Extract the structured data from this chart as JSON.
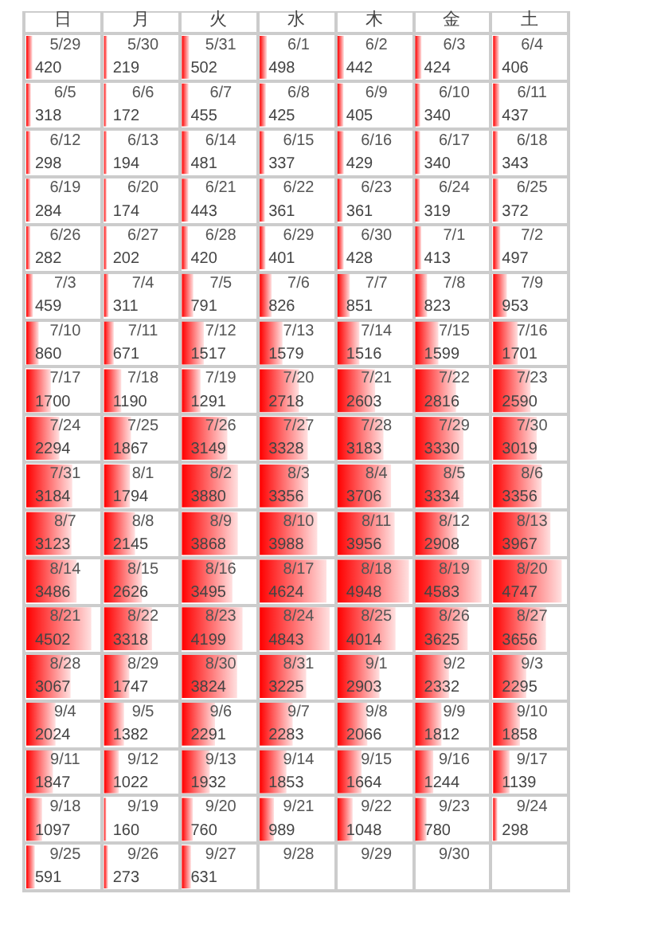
{
  "chart_data": {
    "type": "heatmap",
    "categories": [
      "日",
      "月",
      "火",
      "水",
      "木",
      "金",
      "土"
    ],
    "y_categories": [
      null,
      null,
      null,
      null,
      null,
      null,
      null,
      null,
      null,
      null,
      null,
      null,
      null,
      null,
      null,
      null,
      null,
      null
    ],
    "cells": [
      [
        420,
        219,
        502,
        498,
        442,
        424,
        406
      ],
      [
        318,
        172,
        455,
        425,
        405,
        340,
        437
      ],
      [
        298,
        194,
        481,
        337,
        429,
        340,
        343
      ],
      [
        284,
        174,
        443,
        361,
        361,
        319,
        372
      ],
      [
        282,
        202,
        420,
        401,
        428,
        413,
        497
      ],
      [
        459,
        311,
        791,
        826,
        851,
        823,
        953
      ],
      [
        860,
        671,
        1517,
        1579,
        1516,
        1599,
        1701
      ],
      [
        1700,
        1190,
        1291,
        2718,
        2603,
        2816,
        2590
      ],
      [
        2294,
        1867,
        3149,
        3328,
        3183,
        3330,
        3019
      ],
      [
        3184,
        1794,
        3880,
        3356,
        3706,
        3334,
        3356
      ],
      [
        3123,
        2145,
        3868,
        3988,
        3956,
        2908,
        3967
      ],
      [
        3486,
        2626,
        3495,
        4624,
        4948,
        4583,
        4747
      ],
      [
        4502,
        3318,
        4199,
        4843,
        4014,
        3625,
        3656
      ],
      [
        3067,
        1747,
        3824,
        3225,
        2903,
        2332,
        2295
      ],
      [
        2024,
        1382,
        2291,
        2283,
        2066,
        1812,
        1858
      ],
      [
        1847,
        1022,
        1932,
        1853,
        1664,
        1244,
        1139
      ],
      [
        1097,
        160,
        760,
        989,
        1048,
        780,
        298
      ],
      [
        591,
        273,
        631,
        null,
        null,
        null,
        null
      ]
    ],
    "annotations": [
      "5/29",
      "5/30",
      "5/31",
      "6/1",
      "6/2",
      "6/3",
      "6/4",
      "6/5",
      "6/6",
      "6/7",
      "6/8",
      "6/9",
      "6/10",
      "6/11",
      "6/12",
      "6/13",
      "6/14",
      "6/15",
      "6/16",
      "6/17",
      "6/18",
      "6/19",
      "6/20",
      "6/21",
      "6/22",
      "6/23",
      "6/24",
      "6/25",
      "6/26",
      "6/27",
      "6/28",
      "6/29",
      "6/30",
      "7/1",
      "7/2",
      "7/3",
      "7/4",
      "7/5",
      "7/6",
      "7/7",
      "7/8",
      "7/9",
      "7/10",
      "7/11",
      "7/12",
      "7/13",
      "7/14",
      "7/15",
      "7/16",
      "7/17",
      "7/18",
      "7/19",
      "7/20",
      "7/21",
      "7/22",
      "7/23",
      "7/24",
      "7/25",
      "7/26",
      "7/27",
      "7/28",
      "7/29",
      "7/30",
      "7/31",
      "8/1",
      "8/2",
      "8/3",
      "8/4",
      "8/5",
      "8/6",
      "8/7",
      "8/8",
      "8/9",
      "8/10",
      "8/11",
      "8/12",
      "8/13",
      "8/14",
      "8/15",
      "8/16",
      "8/17",
      "8/18",
      "8/19",
      "8/20",
      "8/21",
      "8/22",
      "8/23",
      "8/24",
      "8/25",
      "8/26",
      "8/27",
      "8/28",
      "8/29",
      "8/30",
      "8/31",
      "9/1",
      "9/2",
      "9/3",
      "9/4",
      "9/5",
      "9/6",
      "9/7",
      "9/8",
      "9/9",
      "9/10",
      "9/11",
      "9/12",
      "9/13",
      "9/14",
      "9/15",
      "9/16",
      "9/17",
      "9/18",
      "9/19",
      "9/20",
      "9/21",
      "9/22",
      "9/23",
      "9/24",
      "9/25",
      "9/26",
      "9/27",
      "9/28",
      "9/29",
      "9/30"
    ],
    "color": "#ff0000",
    "data_labels": true,
    "grid": true,
    "tick_labels": "x"
  }
}
